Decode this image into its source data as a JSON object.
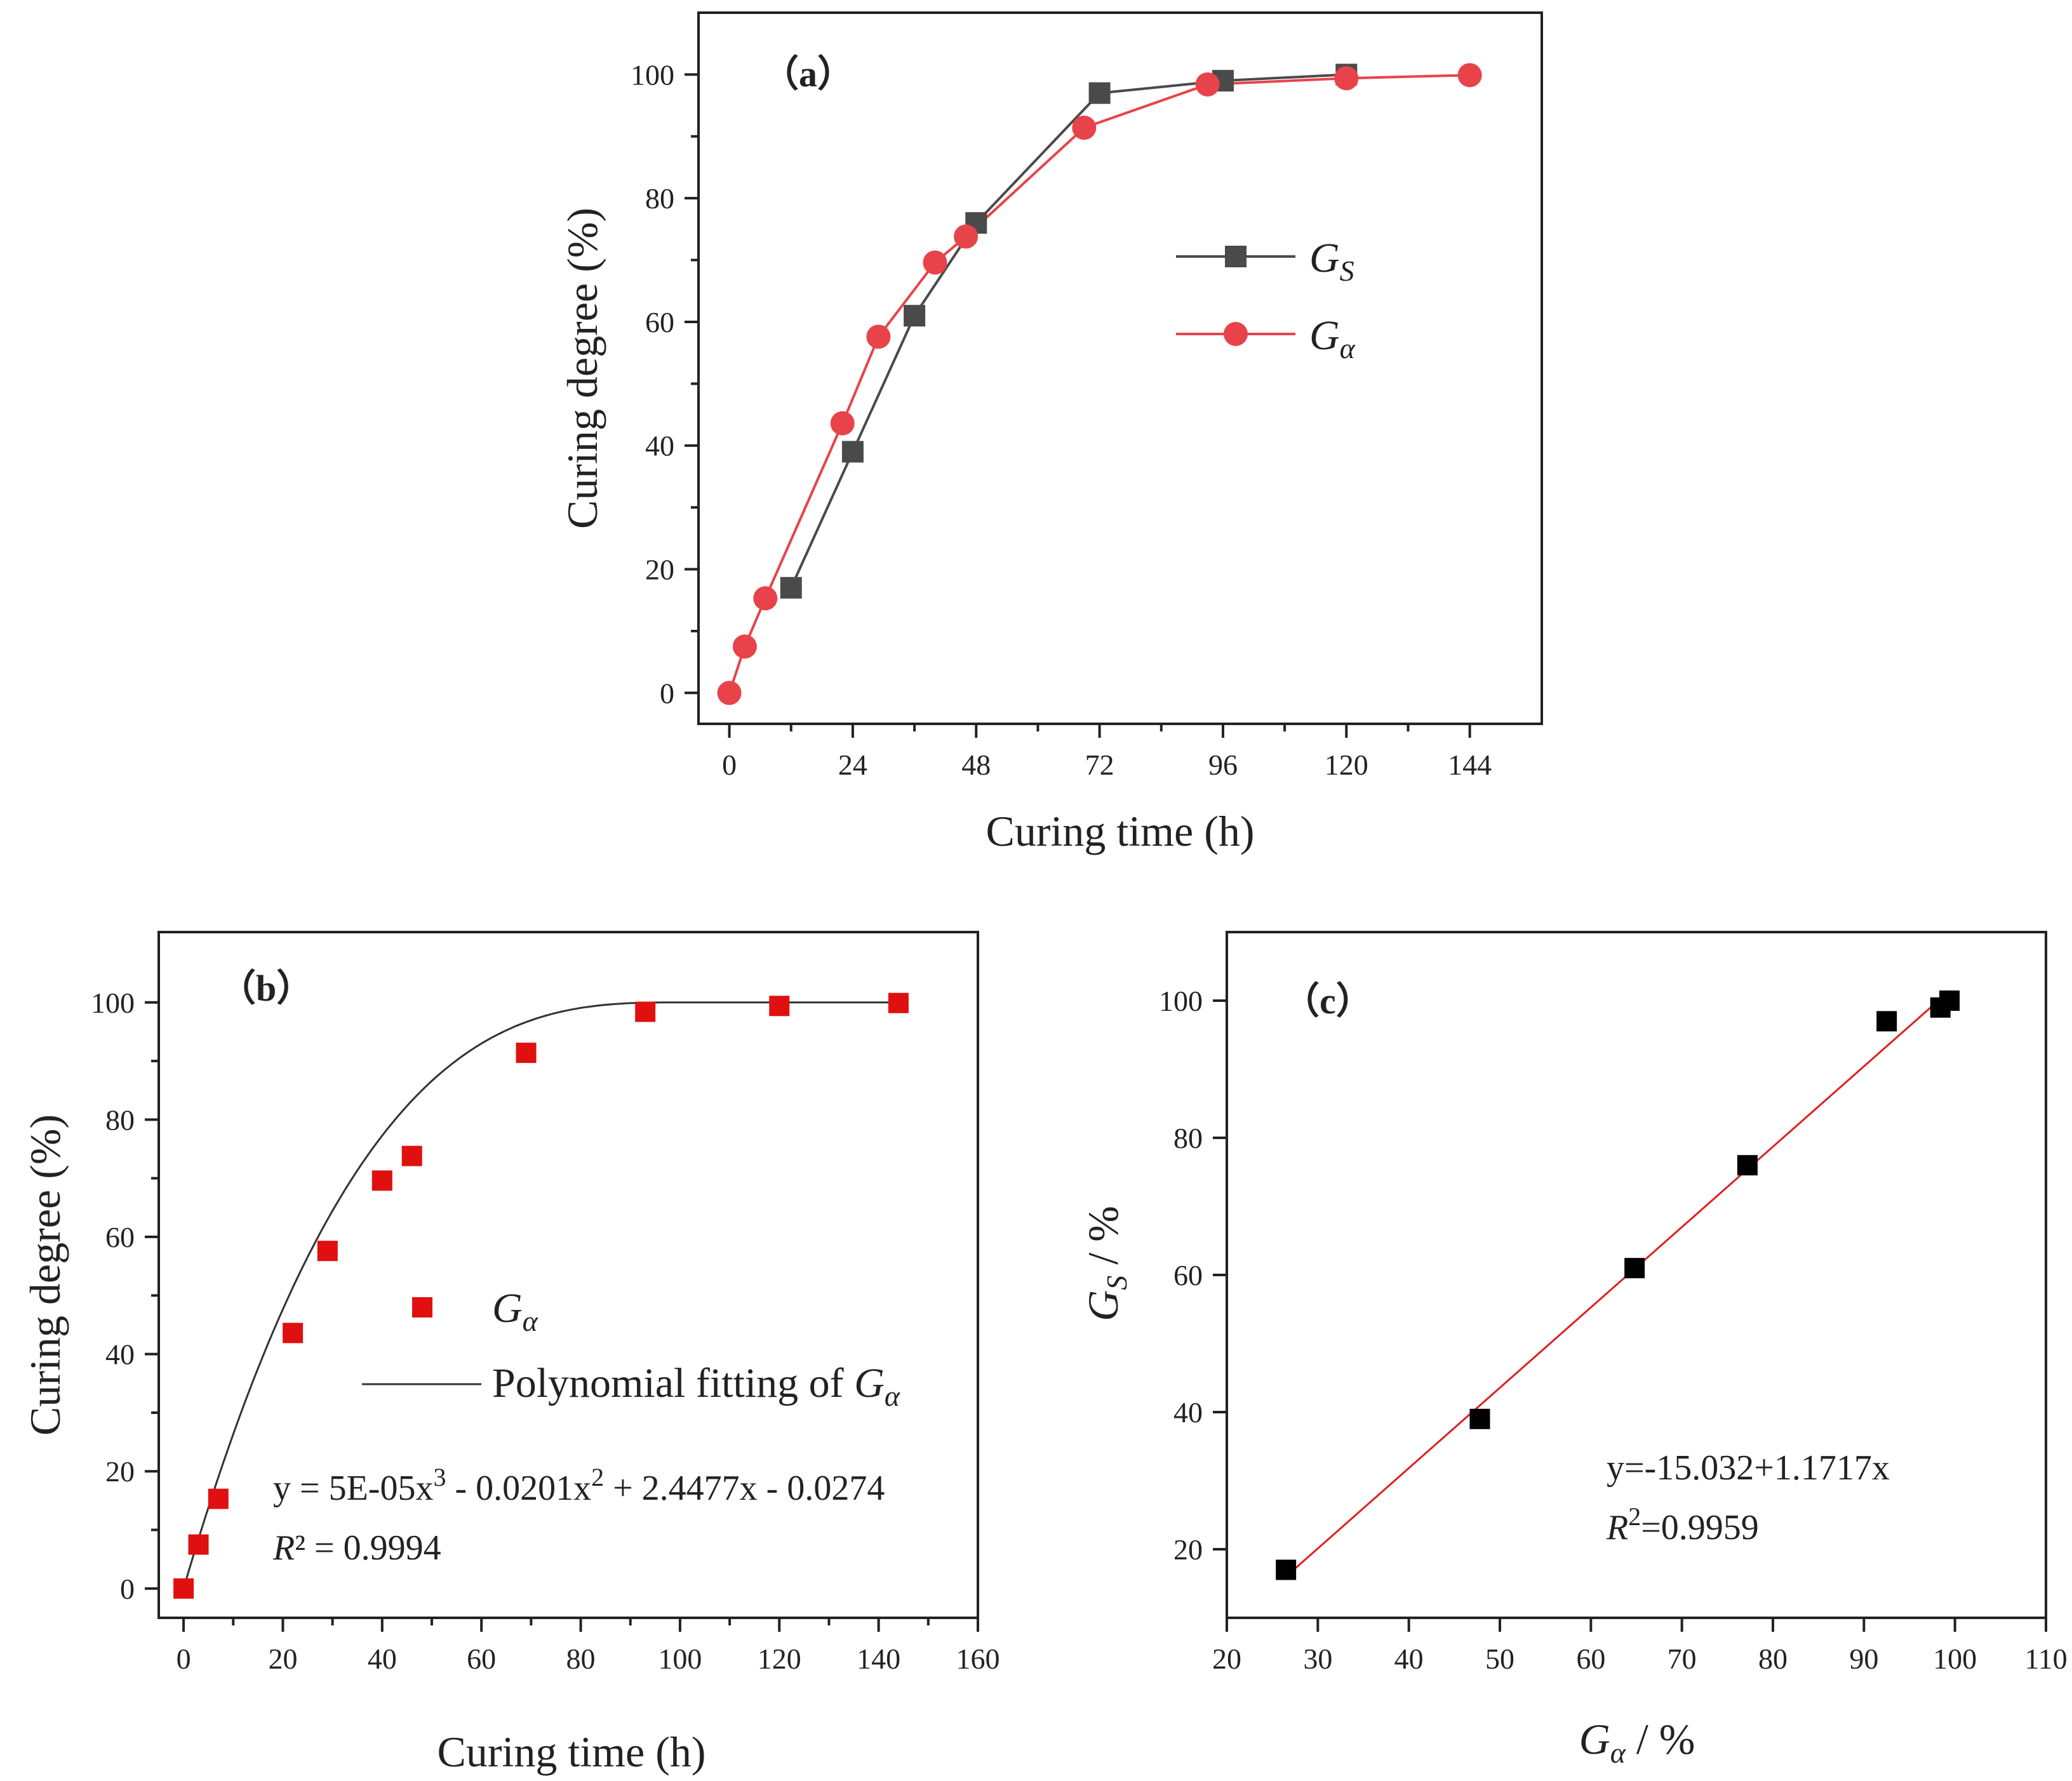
{
  "colors": {
    "series_gs_a": "#4a4a4a",
    "series_ga_a": "#e8434a",
    "points_b": "#e01010",
    "fit_b": "#333333",
    "points_c": "#000000",
    "fit_c": "#e02020",
    "axis": "#222222"
  },
  "chart_data": [
    {
      "id": "a",
      "type": "line",
      "panel_label": "（a）",
      "xlabel": "Curing time (h)",
      "ylabel": "Curing degree (%)",
      "xlim": [
        -6,
        158
      ],
      "ylim": [
        -5,
        110
      ],
      "xticks": [
        0,
        24,
        48,
        72,
        96,
        120,
        144
      ],
      "xtick_labels": [
        "0",
        "24",
        "48",
        "72",
        "96",
        "120",
        "144"
      ],
      "yticks": [
        0,
        20,
        40,
        60,
        80,
        100
      ],
      "ytick_labels": [
        "0",
        "20",
        "40",
        "60",
        "80",
        "100"
      ],
      "legend_position": "middle-right",
      "series": [
        {
          "name": "Gs",
          "legend_main": "G",
          "legend_sub": "S",
          "marker": "square",
          "x": [
            12,
            24,
            36,
            48,
            72,
            96,
            120
          ],
          "y": [
            17,
            39,
            61,
            76,
            97,
            99,
            100
          ]
        },
        {
          "name": "Galpha",
          "legend_main": "G",
          "legend_sub": "α",
          "marker": "circle",
          "x": [
            0,
            3,
            7,
            22,
            29,
            40,
            46,
            69,
            93,
            120,
            144
          ],
          "y": [
            0,
            7.5,
            15.3,
            43.6,
            57.6,
            69.6,
            73.8,
            91.4,
            98.4,
            99.4,
            99.9
          ]
        }
      ]
    },
    {
      "id": "b",
      "type": "scatter",
      "panel_label": "（b）",
      "xlabel": "Curing time (h)",
      "ylabel": "Curing degree (%)",
      "xlim": [
        -5,
        160
      ],
      "ylim": [
        -5,
        112
      ],
      "xticks": [
        0,
        20,
        40,
        60,
        80,
        100,
        120,
        140,
        160
      ],
      "xtick_labels": [
        "0",
        "20",
        "40",
        "60",
        "80",
        "100",
        "120",
        "140",
        "160"
      ],
      "yticks": [
        0,
        20,
        40,
        60,
        80,
        100
      ],
      "ytick_labels": [
        "0",
        "20",
        "40",
        "60",
        "80",
        "100"
      ],
      "legend_position": "center",
      "series": [
        {
          "name": "Galpha",
          "legend_main": "G",
          "legend_sub": "α",
          "marker": "square",
          "x": [
            0,
            3,
            7,
            22,
            29,
            40,
            46,
            69,
            93,
            120,
            144
          ],
          "y": [
            0,
            7.5,
            15.3,
            43.6,
            57.6,
            69.6,
            73.8,
            91.4,
            98.4,
            99.4,
            99.9
          ]
        }
      ],
      "fit": {
        "legend_text": "Polynomial fitting of ",
        "legend_main": "G",
        "legend_sub": "α",
        "equation_prefix": "y = 5E-05x",
        "equation_sup1": "3",
        "equation_mid": " - 0.0201x",
        "equation_sup2": "2",
        "equation_suffix": " + 2.4477x - 0.0274",
        "r2_symbol": "R",
        "r2_text": "² = 0.9994",
        "model": "plateau",
        "x_range": [
          0,
          144
        ]
      }
    },
    {
      "id": "c",
      "type": "scatter",
      "panel_label": "（c）",
      "xlabel_main": "G",
      "xlabel_sub": "α",
      "xlabel_suffix": " / %",
      "ylabel_main": "G",
      "ylabel_sub": "S",
      "ylabel_suffix": " / %",
      "xlim": [
        20,
        110
      ],
      "ylim": [
        10,
        110
      ],
      "xticks": [
        20,
        30,
        40,
        50,
        60,
        70,
        80,
        90,
        100,
        110
      ],
      "xtick_labels": [
        "20",
        "30",
        "40",
        "50",
        "60",
        "70",
        "80",
        "90",
        "100",
        "110"
      ],
      "yticks": [
        20,
        40,
        60,
        80,
        100
      ],
      "ytick_labels": [
        "20",
        "40",
        "60",
        "80",
        "100"
      ],
      "series": [
        {
          "name": "Gs vs Galpha",
          "marker": "square",
          "x": [
            26.5,
            47.8,
            64.8,
            77.2,
            92.5,
            98.4,
            99.4
          ],
          "y": [
            17,
            39,
            61,
            76,
            97,
            99,
            100
          ]
        }
      ],
      "fit": {
        "equation": "y=-15.032+1.1717x",
        "r2_symbol": "R",
        "r2_sup": "2",
        "r2_value": "=0.9959",
        "intercept": -15.032,
        "slope": 1.1717,
        "x_range": [
          26.5,
          98.2
        ]
      }
    }
  ]
}
